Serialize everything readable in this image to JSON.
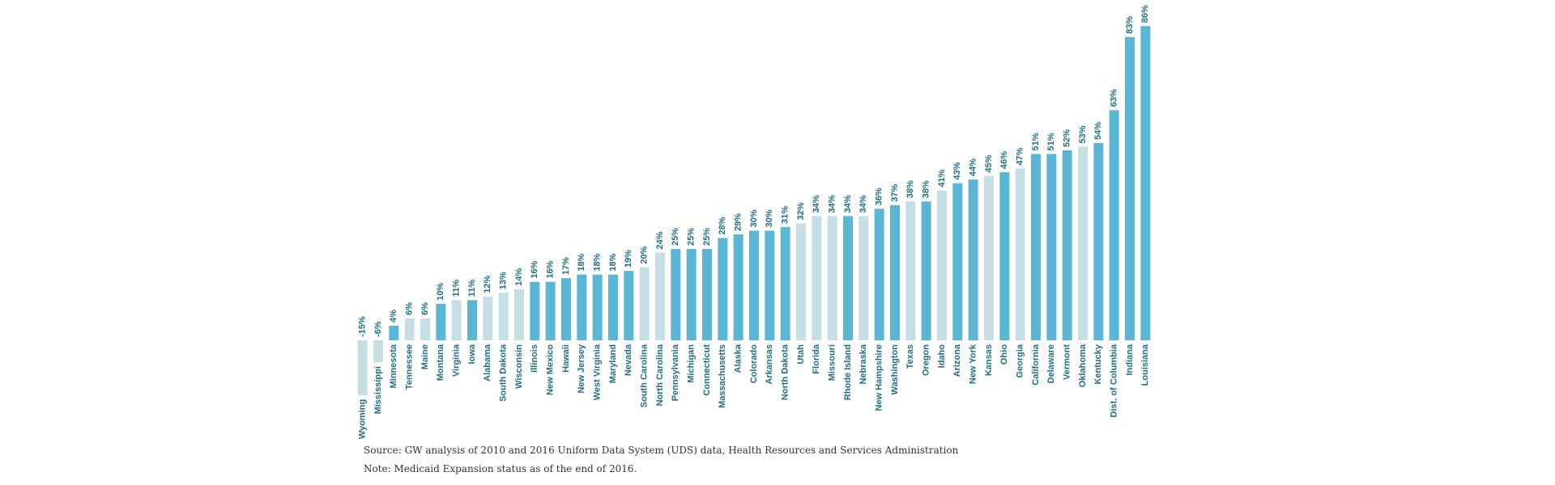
{
  "chart_data": {
    "type": "bar",
    "categories": [
      "Wyoming",
      "Mississippi",
      "Minnesota",
      "Tennessee",
      "Maine",
      "Montana",
      "Virginia",
      "Iowa",
      "Alabama",
      "South Dakota",
      "Wisconsin",
      "Illinois",
      "New Mexico",
      "Hawaii",
      "New Jersey",
      "West Virginia",
      "Maryland",
      "Nevada",
      "South Carolina",
      "North Carolina",
      "Pennsylvania",
      "Michigan",
      "Connecticut",
      "Massachusetts",
      "Alaska",
      "Colorado",
      "Arkansas",
      "North Dakota",
      "Utah",
      "Florida",
      "Missouri",
      "Rhode Island",
      "Nebraska",
      "New Hampshire",
      "Washington",
      "Texas",
      "Oregon",
      "Idaho",
      "Arizona",
      "New York",
      "Kansas",
      "Ohio",
      "Georgia",
      "California",
      "Delaware",
      "Vermont",
      "Oklahoma",
      "Kentucky",
      "Dist. of Columbia",
      "Indiana",
      "Louisiana"
    ],
    "values": [
      -15,
      -6,
      4,
      6,
      6,
      10,
      11,
      11,
      12,
      13,
      14,
      16,
      16,
      17,
      18,
      18,
      18,
      19,
      20,
      24,
      25,
      25,
      25,
      28,
      29,
      30,
      30,
      31,
      32,
      34,
      34,
      34,
      34,
      36,
      37,
      38,
      38,
      41,
      43,
      44,
      45,
      46,
      47,
      51,
      51,
      52,
      53,
      54,
      63,
      83,
      86
    ],
    "value_labels": [
      "-15%",
      "-6%",
      "4%",
      "6%",
      "6%",
      "10%",
      "11%",
      "11%",
      "12%",
      "13%",
      "14%",
      "16%",
      "16%",
      "17%",
      "18%",
      "18%",
      "18%",
      "19%",
      "20%",
      "24%",
      "25%",
      "25%",
      "25%",
      "28%",
      "29%",
      "30%",
      "30%",
      "31%",
      "32%",
      "34%",
      "34%",
      "34%",
      "34%",
      "36%",
      "37%",
      "38%",
      "38%",
      "41%",
      "43%",
      "44%",
      "45%",
      "46%",
      "47%",
      "51%",
      "51%",
      "52%",
      "53%",
      "54%",
      "63%",
      "83%",
      "86%"
    ],
    "colors": [
      "#c6dfe4",
      "#c6dfe4",
      "#5bb5d5",
      "#c6dfe4",
      "#c6dfe4",
      "#5bb5d5",
      "#c6dfe4",
      "#5bb5d5",
      "#c6dfe4",
      "#c6dfe4",
      "#c6dfe4",
      "#5bb5d5",
      "#5bb5d5",
      "#5bb5d5",
      "#5bb5d5",
      "#5bb5d5",
      "#5bb5d5",
      "#5bb5d5",
      "#c6dfe4",
      "#c6dfe4",
      "#5bb5d5",
      "#5bb5d5",
      "#5bb5d5",
      "#5bb5d5",
      "#5bb5d5",
      "#5bb5d5",
      "#5bb5d5",
      "#5bb5d5",
      "#c6dfe4",
      "#c6dfe4",
      "#c6dfe4",
      "#5bb5d5",
      "#c6dfe4",
      "#5bb5d5",
      "#5bb5d5",
      "#c6dfe4",
      "#5bb5d5",
      "#c6dfe4",
      "#5bb5d5",
      "#5bb5d5",
      "#c6dfe4",
      "#5bb5d5",
      "#c6dfe4",
      "#5bb5d5",
      "#5bb5d5",
      "#5bb5d5",
      "#c6dfe4",
      "#5bb5d5",
      "#5bb5d5",
      "#5bb5d5",
      "#5bb5d5"
    ],
    "source": "Source: GW analysis of 2010 and 2016 Uniform Data System (UDS) data, Health Resources and Services Administration",
    "note": "Note: Medicaid Expansion status as of the end of 2016."
  }
}
